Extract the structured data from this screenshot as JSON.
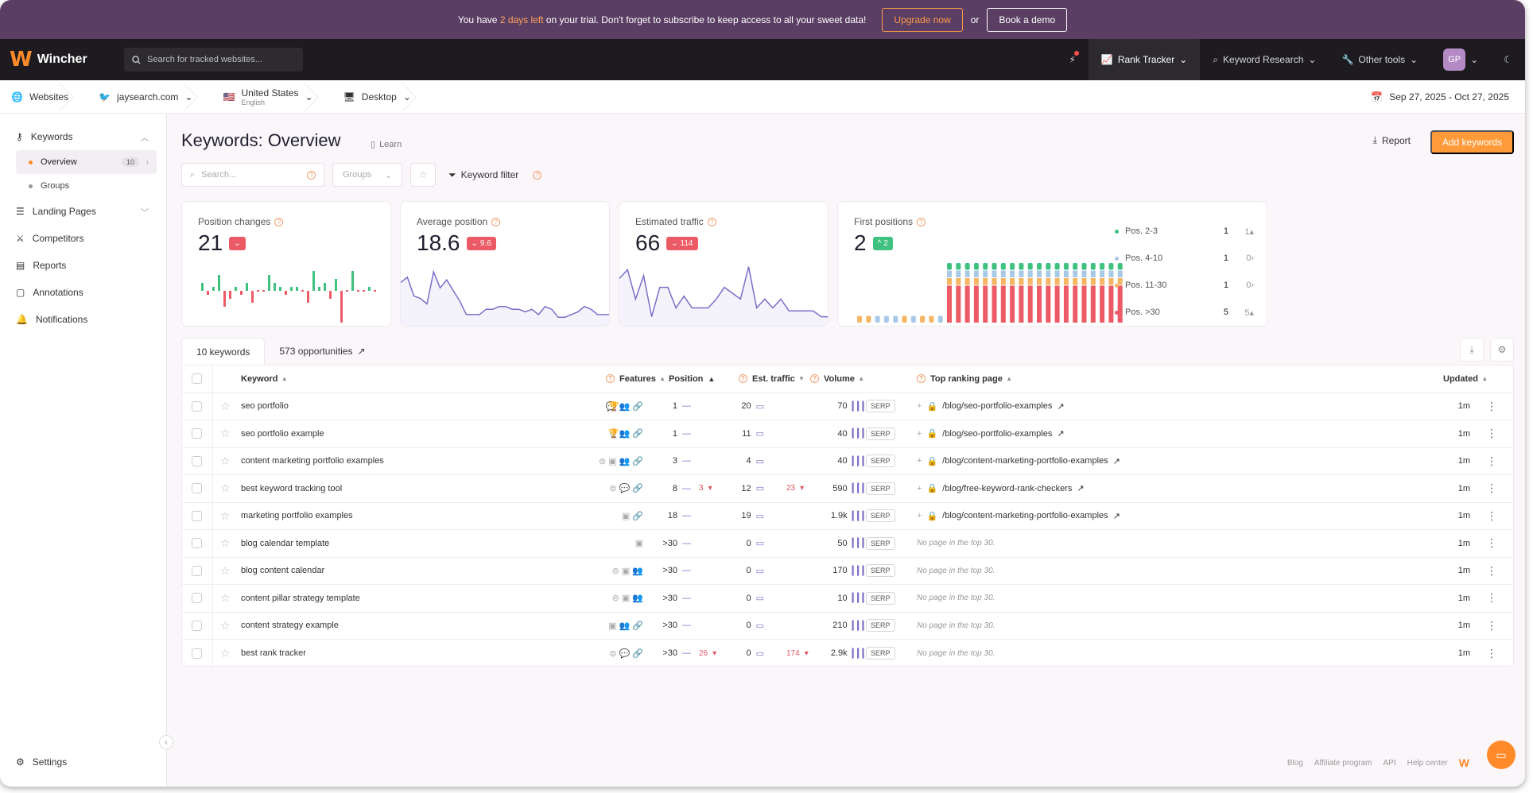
{
  "banner": {
    "prefix": "You have",
    "highlight": "2 days left",
    "suffix": "on your trial. Don't forget to subscribe to keep access to all your sweet data!",
    "upgrade_label": "Upgrade now",
    "or": "or",
    "demo_label": "Book a demo"
  },
  "topbar": {
    "brand": "Wincher",
    "search_placeholder": "Search for tracked websites...",
    "nav": [
      "Rank Tracker",
      "Keyword Research",
      "Other tools"
    ],
    "avatar": "GP"
  },
  "context": {
    "websites": "Websites",
    "site": "jaysearch.com",
    "country": "United States",
    "language": "English",
    "device": "Desktop",
    "date_range": "Sep 27, 2025 - Oct 27, 2025"
  },
  "sidebar": {
    "keywords": "Keywords",
    "overview": "Overview",
    "overview_count": "10",
    "groups": "Groups",
    "landing_pages": "Landing Pages",
    "competitors": "Competitors",
    "reports": "Reports",
    "annotations": "Annotations",
    "notifications": "Notifications",
    "settings": "Settings"
  },
  "main": {
    "title": "Keywords: Overview",
    "learn": "Learn",
    "report": "Report",
    "add_keywords": "Add keywords",
    "search_placeholder": "Search...",
    "groups_placeholder": "Groups",
    "keyword_filter": "Keyword filter"
  },
  "cards": {
    "position_changes": {
      "label": "Position changes",
      "value": "21",
      "badge": ""
    },
    "average_position": {
      "label": "Average position",
      "value": "18.6",
      "badge": "9.6"
    },
    "estimated_traffic": {
      "label": "Estimated traffic",
      "value": "66",
      "badge": "114"
    },
    "first_positions": {
      "label": "First positions",
      "value": "2",
      "badge": "2"
    }
  },
  "first_positions_legend": [
    {
      "label": "Pos. 2-3",
      "count": "1",
      "change": "1",
      "color": "#3fc27f"
    },
    {
      "label": "Pos. 4-10",
      "count": "1",
      "change": "0",
      "color": "#a8c8e8"
    },
    {
      "label": "Pos. 11-30",
      "count": "1",
      "change": "0",
      "color": "#f5b562"
    },
    {
      "label": "Pos. >30",
      "count": "5",
      "change": "5",
      "color": "#ec5b65"
    }
  ],
  "chart_data": [
    {
      "type": "bar",
      "title": "Position changes",
      "values": [
        2,
        -1,
        1,
        4,
        -4,
        -2,
        1,
        -1,
        2,
        -3,
        0,
        0,
        4,
        2,
        1,
        -1,
        1,
        1,
        0,
        -3,
        5,
        1,
        2,
        -2,
        3,
        -8,
        0,
        5,
        0,
        0,
        1,
        0
      ]
    },
    {
      "type": "line",
      "title": "Average position",
      "values": [
        17,
        15,
        22,
        23,
        25,
        13,
        19,
        16,
        20,
        24,
        29,
        29,
        29,
        27,
        27,
        26,
        26,
        27,
        27,
        28,
        27,
        29,
        26,
        27,
        30,
        30,
        29,
        28,
        26,
        27,
        29,
        29,
        29
      ]
    },
    {
      "type": "line",
      "title": "Estimated traffic",
      "values": [
        5,
        2,
        12,
        4,
        18,
        8,
        8,
        15,
        11,
        15,
        15,
        15,
        12,
        8,
        10,
        12,
        1,
        15,
        12,
        15,
        12,
        16,
        16,
        16,
        16,
        18,
        18
      ]
    },
    {
      "type": "bar",
      "title": "First positions",
      "series": [
        {
          "name": "Pos. >30",
          "values": [
            0,
            0,
            0,
            0,
            0,
            0,
            0,
            0,
            0,
            0,
            5,
            5,
            5,
            5,
            5,
            5,
            5,
            5,
            5,
            5,
            5,
            5,
            5,
            5,
            5,
            5,
            5,
            5,
            5,
            5,
            5
          ]
        },
        {
          "name": "Pos. 11-30",
          "values": [
            1,
            1,
            0,
            0,
            0,
            1,
            0,
            1,
            1,
            0,
            1,
            1,
            1,
            1,
            1,
            1,
            1,
            1,
            1,
            1,
            1,
            1,
            1,
            1,
            1,
            1,
            1,
            1,
            1,
            1,
            1
          ]
        },
        {
          "name": "Pos. 4-10",
          "values": [
            0,
            0,
            1,
            1,
            1,
            0,
            1,
            0,
            0,
            1,
            1,
            1,
            1,
            1,
            1,
            1,
            1,
            1,
            1,
            1,
            1,
            1,
            1,
            1,
            1,
            1,
            1,
            1,
            1,
            1,
            1
          ]
        },
        {
          "name": "Pos. 2-3",
          "values": [
            0,
            0,
            0,
            0,
            0,
            0,
            0,
            0,
            0,
            0,
            1,
            1,
            1,
            1,
            1,
            1,
            1,
            1,
            1,
            1,
            1,
            1,
            1,
            1,
            1,
            1,
            1,
            1,
            1,
            1,
            1
          ]
        }
      ]
    }
  ],
  "tabs": {
    "keywords": "10 keywords",
    "opportunities": "573 opportunities"
  },
  "table": {
    "headers": {
      "keyword": "Keyword",
      "features": "Features",
      "position": "Position",
      "traffic": "Est. traffic",
      "volume": "Volume",
      "page": "Top ranking page",
      "updated": "Updated"
    },
    "serp_label": "SERP",
    "rows": [
      {
        "keyword": "seo portfolio",
        "features": "💬 👥 🔗",
        "trophy": true,
        "position": "1",
        "pos_change": "",
        "traffic": "20",
        "traffic_change": "",
        "volume": "70",
        "page": "/blog/seo-portfolio-examples",
        "updated": "1m"
      },
      {
        "keyword": "seo portfolio example",
        "features": "⊜ 👥 🔗",
        "trophy": true,
        "position": "1",
        "pos_change": "",
        "traffic": "11",
        "traffic_change": "",
        "volume": "40",
        "page": "/blog/seo-portfolio-examples",
        "updated": "1m"
      },
      {
        "keyword": "content marketing portfolio examples",
        "features": "⊜ ▣ 👥 🔗",
        "trophy": false,
        "position": "3",
        "pos_change": "",
        "traffic": "4",
        "traffic_change": "",
        "volume": "40",
        "page": "/blog/content-marketing-portfolio-examples",
        "updated": "1m"
      },
      {
        "keyword": "best keyword tracking tool",
        "features": "⊜ 💬 🔗",
        "trophy": false,
        "position": "8",
        "pos_change": "3",
        "traffic": "12",
        "traffic_change": "23",
        "volume": "590",
        "page": "/blog/free-keyword-rank-checkers",
        "updated": "1m"
      },
      {
        "keyword": "marketing portfolio examples",
        "features": "▣ 🔗",
        "trophy": false,
        "position": "18",
        "pos_change": "",
        "traffic": "19",
        "traffic_change": "",
        "volume": "1.9k",
        "page": "/blog/content-marketing-portfolio-examples",
        "updated": "1m"
      },
      {
        "keyword": "blog calendar template",
        "features": "▣",
        "trophy": false,
        "position": ">30",
        "pos_change": "",
        "traffic": "0",
        "traffic_change": "",
        "volume": "50",
        "page": "No page in the top 30.",
        "updated": "1m"
      },
      {
        "keyword": "blog content calendar",
        "features": "⊜ ▣ 👥",
        "trophy": false,
        "position": ">30",
        "pos_change": "",
        "traffic": "0",
        "traffic_change": "",
        "volume": "170",
        "page": "No page in the top 30.",
        "updated": "1m"
      },
      {
        "keyword": "content pillar strategy template",
        "features": "⊜ ▣ 👥",
        "trophy": false,
        "position": ">30",
        "pos_change": "",
        "traffic": "0",
        "traffic_change": "",
        "volume": "10",
        "page": "No page in the top 30.",
        "updated": "1m"
      },
      {
        "keyword": "content strategy example",
        "features": "▣ 👥 🔗",
        "trophy": false,
        "position": ">30",
        "pos_change": "",
        "traffic": "0",
        "traffic_change": "",
        "volume": "210",
        "page": "No page in the top 30.",
        "updated": "1m"
      },
      {
        "keyword": "best rank tracker",
        "features": "⊜ 💬 🔗",
        "trophy": false,
        "position": ">30",
        "pos_change": "26",
        "traffic": "0",
        "traffic_change": "174",
        "volume": "2.9k",
        "page": "No page in the top 30.",
        "updated": "1m"
      }
    ]
  },
  "footer": {
    "links": [
      "Blog",
      "Affiliate program",
      "API",
      "Help center"
    ]
  },
  "colors": {
    "accent": "#ff9a3a",
    "banner": "#5a3e63",
    "topbar": "#1d1b1f",
    "line": "#7a6fc8",
    "red": "#ec5b65",
    "green": "#3fc27f"
  }
}
